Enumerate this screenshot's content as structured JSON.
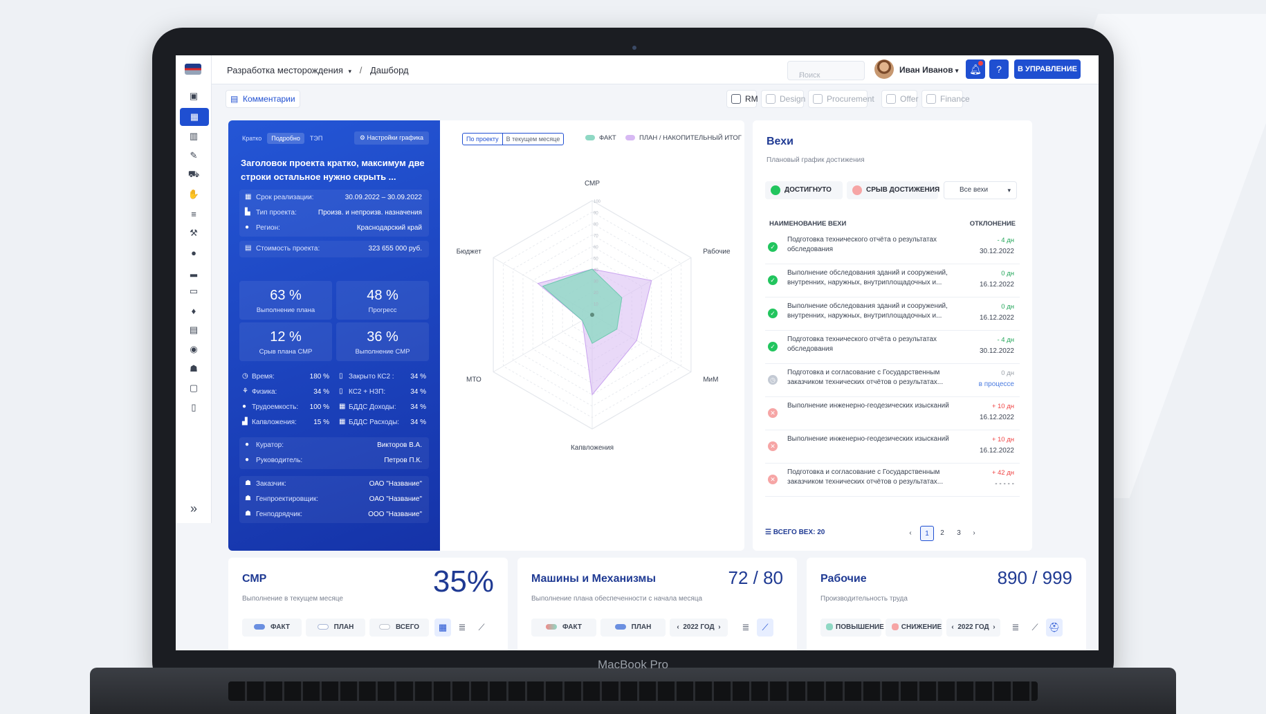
{
  "brand": "MacBook Pro",
  "breadcrumb": {
    "project": "Разработка месторождения",
    "page": "Дашборд"
  },
  "search": {
    "placeholder": "Поиск"
  },
  "user": {
    "name": "Иван Иванов"
  },
  "header": {
    "manage_label": "В УПРАВЛЕНИЕ"
  },
  "subbar": {
    "comments": "Комментарии",
    "modules": [
      "RM",
      "Design",
      "Procurement",
      "Offer",
      "Finance"
    ]
  },
  "project": {
    "tabs": [
      "Кратко",
      "Подробно",
      "ТЭП"
    ],
    "settings": "Настройки графика",
    "title": "Заголовок проекта кратко, максимум две строки остальное нужно скрыть ...",
    "info": [
      {
        "k": "Срок реализации:",
        "v": "30.09.2022 – 30.09.2022"
      },
      {
        "k": "Тип проекта:",
        "v": "Произв. и непроизв. назначения"
      },
      {
        "k": "Регион:",
        "v": "Краснодарский край"
      }
    ],
    "cost": {
      "k": "Стоимость проекта:",
      "v": "323 655 000 руб."
    },
    "kpis": [
      {
        "n": "63 %",
        "l": "Выполнение плана"
      },
      {
        "n": "48 %",
        "l": "Прогресс"
      },
      {
        "n": "12 %",
        "l": "Срыв плана СМР"
      },
      {
        "n": "36 %",
        "l": "Выполнение СМР"
      }
    ],
    "mini_left": [
      {
        "k": "Время:",
        "v": "180 %"
      },
      {
        "k": "Физика:",
        "v": "34 %"
      },
      {
        "k": "Трудоемкость:",
        "v": "100 %"
      },
      {
        "k": "Капвложения:",
        "v": "15 %"
      }
    ],
    "mini_right": [
      {
        "k": "Закрыто КС2 :",
        "v": "34 %"
      },
      {
        "k": "КС2 + НЗП:",
        "v": "34 %"
      },
      {
        "k": "БДДС Доходы:",
        "v": "34 %"
      },
      {
        "k": "БДДС Расходы:",
        "v": "34 %"
      }
    ],
    "people": [
      {
        "k": "Куратор:",
        "v": "Викторов В.А."
      },
      {
        "k": "Руководитель:",
        "v": "Петров П.К."
      }
    ],
    "orgs": [
      {
        "k": "Заказчик:",
        "v": "ОАО \"Название\""
      },
      {
        "k": "Генпроектировщик:",
        "v": "ОАО \"Название\""
      },
      {
        "k": "Генподрядчик:",
        "v": "ООО \"Название\""
      }
    ]
  },
  "radar": {
    "scope": [
      "По проекту",
      "В текущем месяце"
    ],
    "legend_fact": "ФАКТ",
    "legend_plan": "ПЛАН / НАКОПИТЕЛЬНЫЙ ИТОГ",
    "fact_color": "#8fd8c4",
    "plan_color": "#d7b9f3"
  },
  "chart_data": {
    "type": "radar",
    "categories": [
      "СМР",
      "Рабочие",
      "МиМ",
      "Капвложения",
      "МТО",
      "Бюджет"
    ],
    "rmax": 100,
    "ticks": [
      "100",
      "90",
      "80",
      "70",
      "60",
      "50",
      "40",
      "30",
      "20",
      "10"
    ],
    "series": [
      {
        "name": "ФАКТ",
        "values": [
          40,
          30,
          25,
          25,
          10,
          50
        ]
      },
      {
        "name": "ПЛАН / НАКОПИТЕЛЬНЫЙ ИТОГ",
        "values": [
          40,
          60,
          45,
          70,
          10,
          55
        ]
      }
    ]
  },
  "milestones": {
    "title": "Вехи",
    "subtitle": "Плановый график достижения",
    "chip_ok": "ДОСТИГНУТО",
    "chip_fail": "СРЫВ ДОСТИЖЕНИЯ",
    "filter": "Все вехи",
    "col_name": "НАИМЕНОВАНИЕ ВЕХИ",
    "col_dev": "ОТКЛОНЕНИЕ",
    "rows": [
      {
        "status": "ok",
        "name1": "Подготовка технического отчёта о результатах",
        "name2": "обследования",
        "dev": "- 4 дн",
        "date": "30.12.2022"
      },
      {
        "status": "ok",
        "name1": "Выполнение обследования зданий и сооружений,",
        "name2": "внутренних, наружных, внутриплощадочных и...",
        "dev": "0 дн",
        "date": "16.12.2022"
      },
      {
        "status": "ok",
        "name1": "Выполнение обследования зданий и сооружений,",
        "name2": "внутренних, наружных, внутриплощадочных и...",
        "dev": "0 дн",
        "date": "16.12.2022"
      },
      {
        "status": "ok",
        "name1": "Подготовка технического отчёта о результатах",
        "name2": "обследования",
        "dev": "- 4 дн",
        "date": "30.12.2022"
      },
      {
        "status": "progress",
        "name1": "Подготовка и согласование с Государственным",
        "name2": "заказчиком технических отчётов о результатах...",
        "dev": "0 дн",
        "date": "в процессе"
      },
      {
        "status": "fail",
        "name1": "Выполнение инженерно-геодезических изысканий",
        "name2": "",
        "dev": "+ 10 дн",
        "date": "16.12.2022"
      },
      {
        "status": "fail",
        "name1": "Выполнение инженерно-геодезических изысканий",
        "name2": "",
        "dev": "+ 10 дн",
        "date": "16.12.2022"
      },
      {
        "status": "fail",
        "name1": "Подготовка и согласование с Государственным",
        "name2": "заказчиком технических отчётов о результатах...",
        "dev": "+ 42 дн",
        "date": "- - - - -"
      }
    ],
    "total_label": "ВСЕГО ВЕХ:",
    "total": "20",
    "pages": [
      "1",
      "2",
      "3"
    ]
  },
  "cards": {
    "smr": {
      "title": "СМР",
      "subtitle": "Выполнение в текущем месяце",
      "value": "35%",
      "btns": [
        "ФАКТ",
        "ПЛАН",
        "ВСЕГО"
      ]
    },
    "mim": {
      "title": "Машины и Механизмы",
      "subtitle": "Выполнение плана обеспеченности с начала месяца",
      "value": "72 / 80",
      "btns": [
        "ФАКТ",
        "ПЛАН"
      ],
      "year": "2022 ГОД"
    },
    "work": {
      "title": "Рабочие",
      "subtitle": "Производительность труда",
      "value": "890 / 999",
      "btns": [
        "ПОВЫШЕНИЕ",
        "СНИЖЕНИЕ"
      ],
      "year": "2022 ГОД"
    }
  }
}
